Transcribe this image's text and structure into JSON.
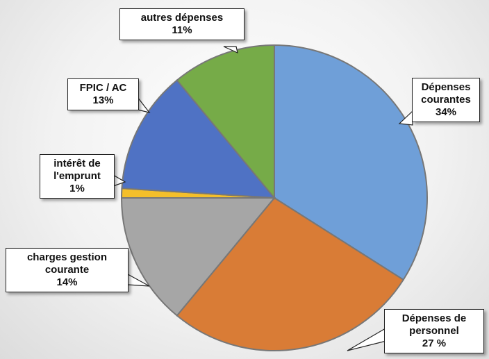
{
  "chart_data": {
    "type": "pie",
    "categories": [
      "Dépenses courantes",
      "Dépenses de personnel",
      "charges gestion courante",
      "intérêt de l'emprunt",
      "FPIC / AC",
      "autres dépenses"
    ],
    "values": [
      34,
      27,
      14,
      1,
      13,
      11
    ],
    "value_labels": [
      "34%",
      "27 %",
      "14%",
      "1%",
      "13%",
      "11%"
    ],
    "colors": [
      "#6f9fd8",
      "#d97c36",
      "#a6a6a6",
      "#f4bf2a",
      "#4f72c4",
      "#76ab48"
    ],
    "start_angle": -90,
    "direction": "clockwise"
  }
}
